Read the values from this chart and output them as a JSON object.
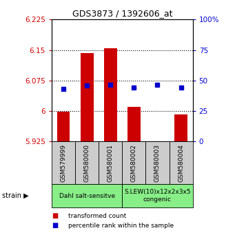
{
  "title": "GDS3873 / 1392606_at",
  "samples": [
    "GSM579999",
    "GSM580000",
    "GSM580001",
    "GSM580002",
    "GSM580003",
    "GSM580004"
  ],
  "red_values": [
    5.9985,
    6.143,
    6.155,
    6.01,
    5.925,
    5.992
  ],
  "blue_values": [
    6.055,
    6.063,
    6.065,
    6.057,
    6.065,
    6.057
  ],
  "red_base": 5.925,
  "ylim": [
    5.925,
    6.225
  ],
  "yticks": [
    5.925,
    6.0,
    6.075,
    6.15,
    6.225
  ],
  "ytick_labels": [
    "5.925",
    "6",
    "6.075",
    "6.15",
    "6.225"
  ],
  "right_yticks": [
    0,
    25,
    50,
    75,
    100
  ],
  "right_ytick_labels": [
    "0",
    "25",
    "50",
    "75",
    "100%"
  ],
  "groups": [
    {
      "label": "Dahl salt-sensitve",
      "start": 0,
      "end": 3,
      "color": "#88ee88"
    },
    {
      "label": "S.LEW(10)x12x2x3x5\ncongenic",
      "start": 3,
      "end": 6,
      "color": "#88ee88"
    }
  ],
  "legend_items": [
    {
      "color": "#cc0000",
      "label": "transformed count"
    },
    {
      "color": "#0000cc",
      "label": "percentile rank within the sample"
    }
  ],
  "bar_color": "#cc0000",
  "dot_color": "#0000cc",
  "bg_color": "#ffffff",
  "left_tick_color": "#cc0000",
  "right_tick_color": "#0000cc",
  "bar_width": 0.55,
  "dot_size": 5,
  "sample_box_color": "#cccccc"
}
